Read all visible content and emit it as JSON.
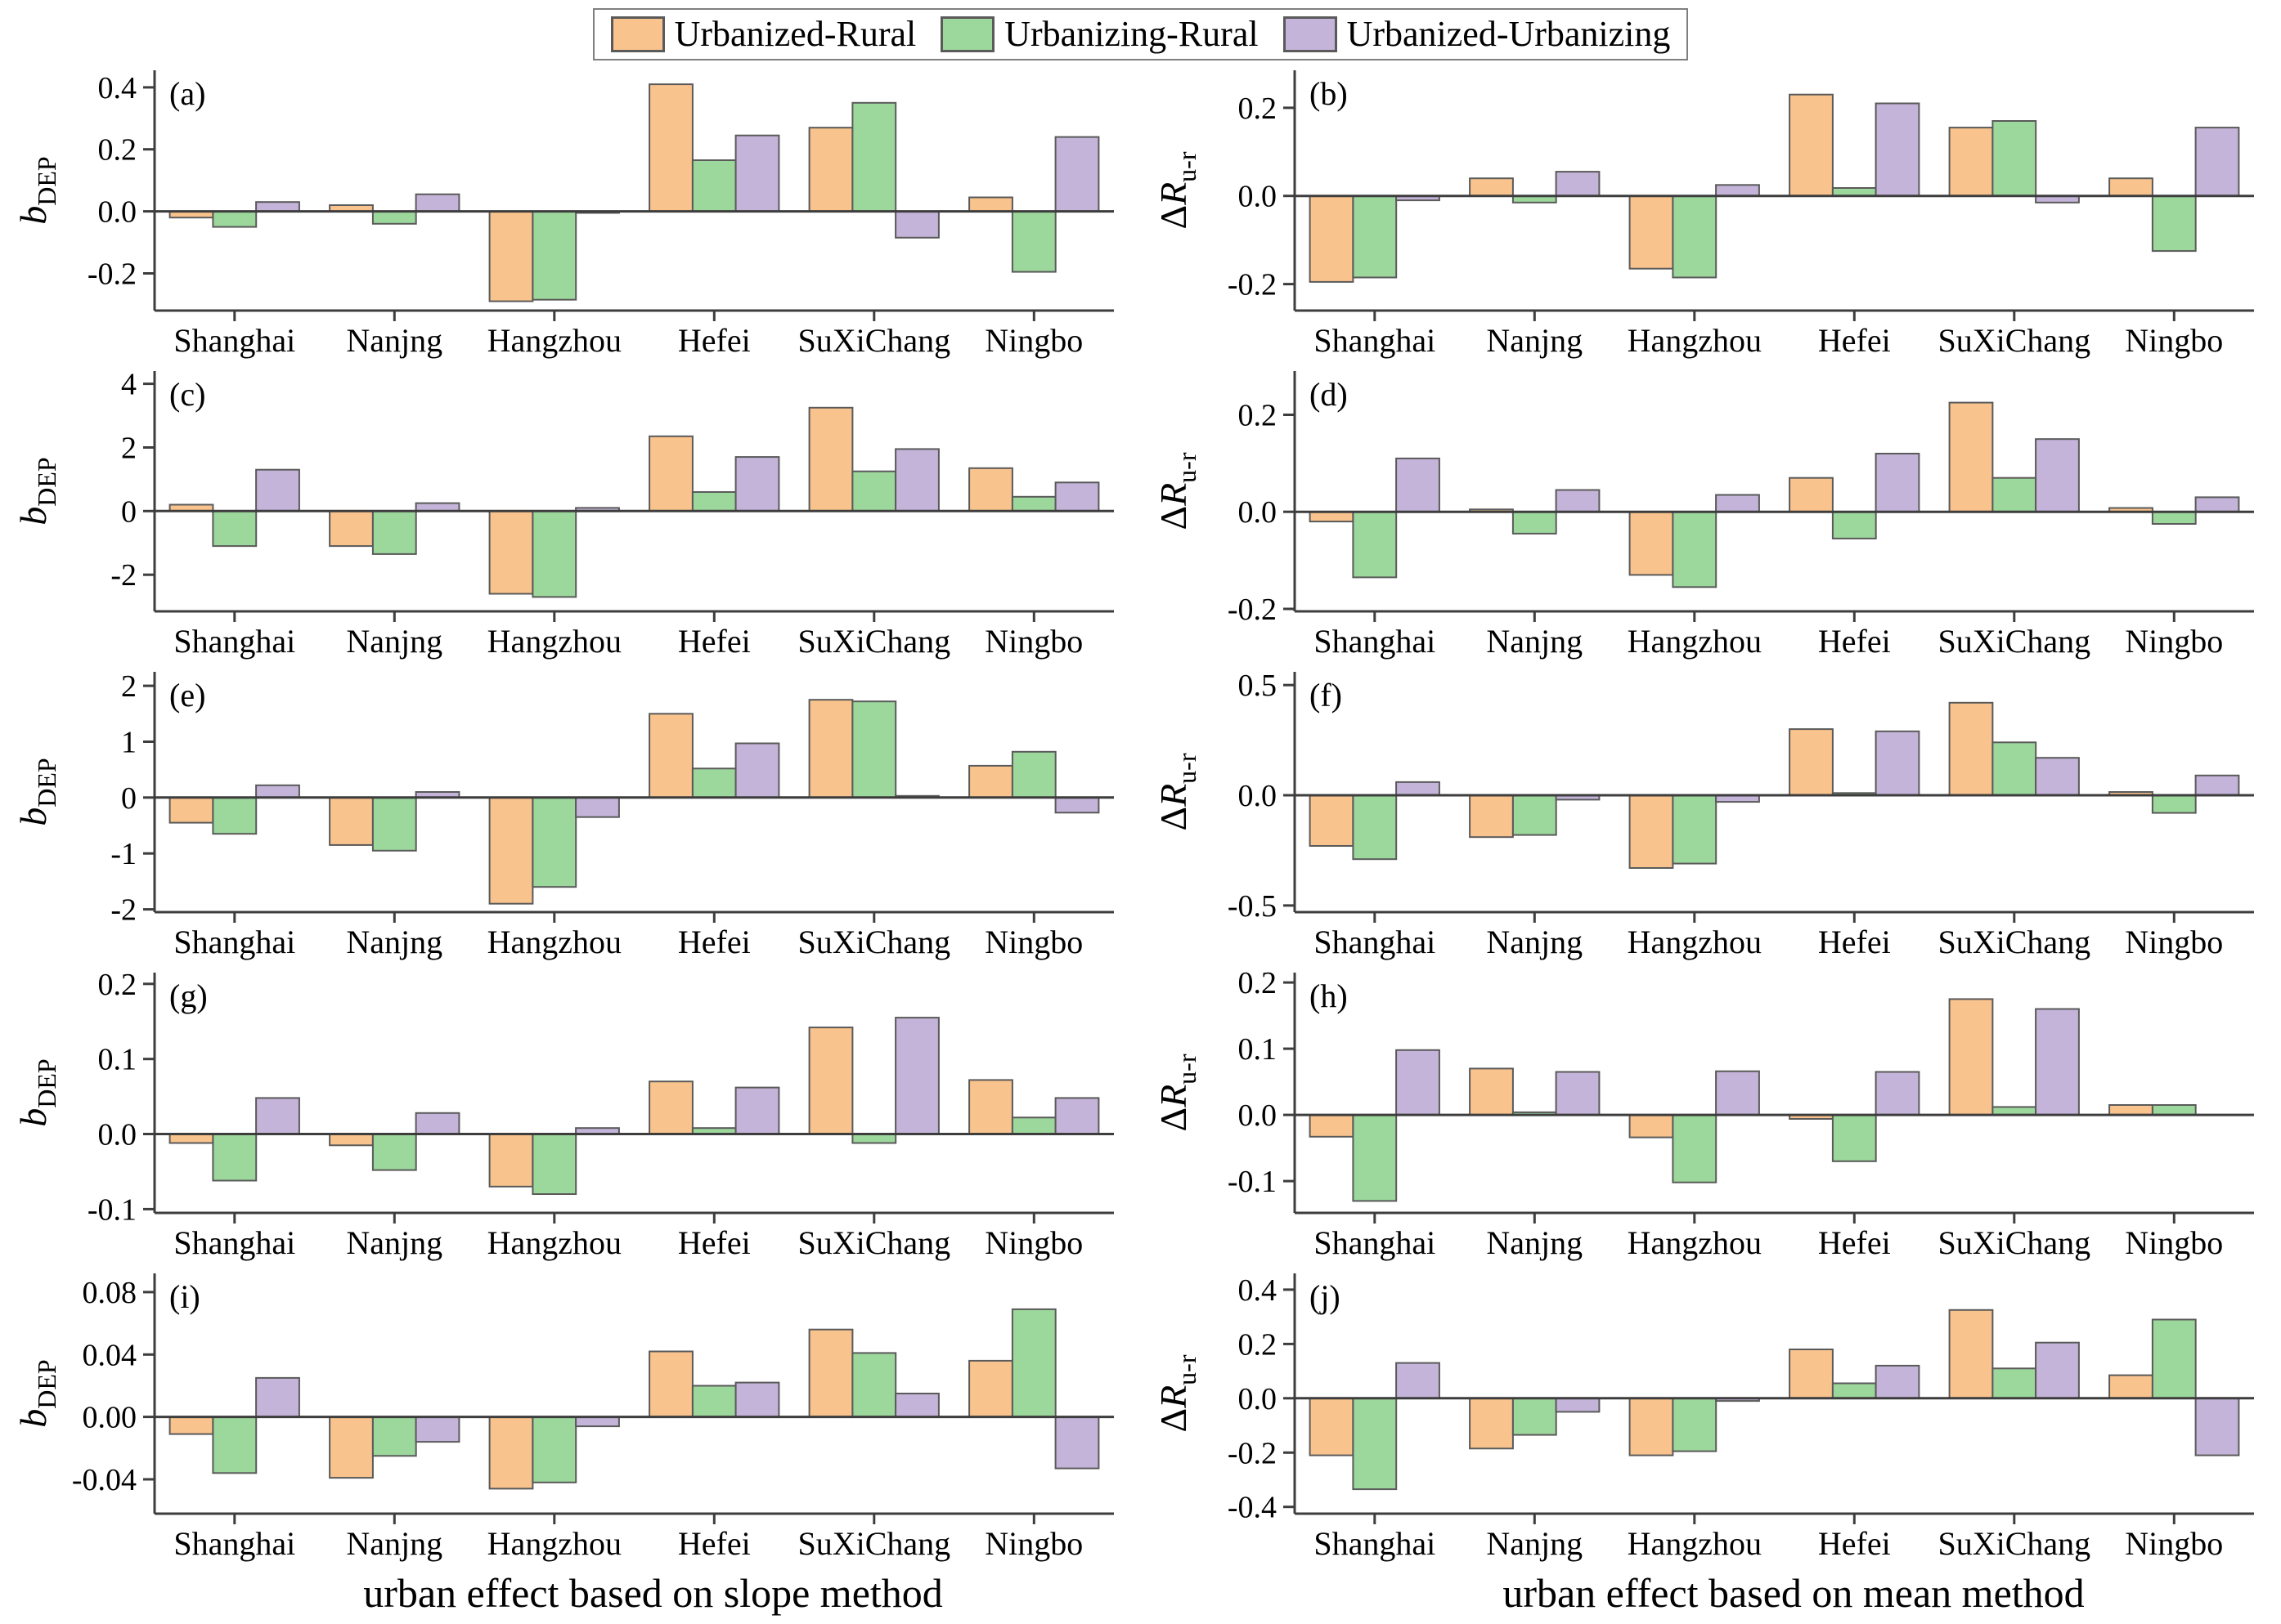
{
  "legend": {
    "items": [
      {
        "label": "Urbanized-Rural",
        "color": "#F9C38D"
      },
      {
        "label": "Urbanizing-Rural",
        "color": "#9CD79B"
      },
      {
        "label": "Urbanized-Urbanizing",
        "color": "#C4B4D9"
      }
    ]
  },
  "colors": {
    "bar_stroke": "#5a5a5a",
    "axis": "#3d3d3d"
  },
  "xtitles": {
    "slope": "urban effect based on slope method",
    "mean": "urban effect based on mean method"
  },
  "categories": [
    "Shanghai",
    "Nanjng",
    "Hangzhou",
    "Hefei",
    "SuXiChang",
    "Ningbo"
  ],
  "chart_data": [
    {
      "type": "bar",
      "key": "a",
      "id": "(a)",
      "ylabel": {
        "prefix": "",
        "main": "b",
        "sub": "DEP"
      },
      "ylim": [
        -0.32,
        0.455
      ],
      "yticks": [
        {
          "t": "0.4",
          "v": 0.4
        },
        {
          "t": "0.2",
          "v": 0.2
        },
        {
          "t": "0.0",
          "v": 0.0
        },
        {
          "t": "-0.2",
          "v": -0.2
        }
      ],
      "series": [
        {
          "name": "Urbanized-Rural",
          "values": [
            -0.02,
            0.02,
            -0.29,
            0.41,
            0.27,
            0.045
          ]
        },
        {
          "name": "Urbanizing-Rural",
          "values": [
            -0.05,
            -0.04,
            -0.285,
            0.165,
            0.35,
            -0.195
          ]
        },
        {
          "name": "Urbanized-Urbanizing",
          "values": [
            0.03,
            0.055,
            -0.005,
            0.245,
            -0.085,
            0.24
          ]
        }
      ]
    },
    {
      "type": "bar",
      "key": "b",
      "id": "(b)",
      "ylabel": {
        "prefix": "Δ",
        "main": "R",
        "sub": "u-r"
      },
      "ylim": [
        -0.26,
        0.285
      ],
      "yticks": [
        {
          "t": "0.2",
          "v": 0.2
        },
        {
          "t": "0.0",
          "v": 0.0
        },
        {
          "t": "-0.2",
          "v": -0.2
        }
      ],
      "series": [
        {
          "name": "Urbanized-Rural",
          "values": [
            -0.195,
            0.04,
            -0.165,
            0.23,
            0.155,
            0.04
          ]
        },
        {
          "name": "Urbanizing-Rural",
          "values": [
            -0.185,
            -0.015,
            -0.185,
            0.018,
            0.17,
            -0.125
          ]
        },
        {
          "name": "Urbanized-Urbanizing",
          "values": [
            -0.01,
            0.055,
            0.025,
            0.21,
            -0.015,
            0.155
          ]
        }
      ]
    },
    {
      "type": "bar",
      "key": "c",
      "id": "(c)",
      "ylabel": {
        "prefix": "",
        "main": "b",
        "sub": "DEP"
      },
      "ylim": [
        -3.15,
        4.4
      ],
      "yticks": [
        {
          "t": "4",
          "v": 4
        },
        {
          "t": "2",
          "v": 2
        },
        {
          "t": "0",
          "v": 0
        },
        {
          "t": "-2",
          "v": -2
        }
      ],
      "series": [
        {
          "name": "Urbanized-Rural",
          "values": [
            0.2,
            -1.1,
            -2.6,
            2.35,
            3.25,
            1.35
          ]
        },
        {
          "name": "Urbanizing-Rural",
          "values": [
            -1.1,
            -1.35,
            -2.7,
            0.6,
            1.25,
            0.45
          ]
        },
        {
          "name": "Urbanized-Urbanizing",
          "values": [
            1.3,
            0.25,
            0.1,
            1.7,
            1.95,
            0.9
          ]
        }
      ]
    },
    {
      "type": "bar",
      "key": "d",
      "id": "(d)",
      "ylabel": {
        "prefix": "Δ",
        "main": "R",
        "sub": "u-r"
      },
      "ylim": [
        -0.205,
        0.29
      ],
      "yticks": [
        {
          "t": "0.2",
          "v": 0.2
        },
        {
          "t": "0.0",
          "v": 0.0
        },
        {
          "t": "-0.2",
          "v": -0.2
        }
      ],
      "series": [
        {
          "name": "Urbanized-Rural",
          "values": [
            -0.02,
            0.005,
            -0.13,
            0.07,
            0.225,
            0.008
          ]
        },
        {
          "name": "Urbanizing-Rural",
          "values": [
            -0.135,
            -0.045,
            -0.155,
            -0.055,
            0.07,
            -0.025
          ]
        },
        {
          "name": "Urbanized-Urbanizing",
          "values": [
            0.11,
            0.045,
            0.035,
            0.12,
            0.15,
            0.03
          ]
        }
      ]
    },
    {
      "type": "bar",
      "key": "e",
      "id": "(e)",
      "ylabel": {
        "prefix": "",
        "main": "b",
        "sub": "DEP"
      },
      "ylim": [
        -2.05,
        2.25
      ],
      "yticks": [
        {
          "t": "2",
          "v": 2
        },
        {
          "t": "1",
          "v": 1
        },
        {
          "t": "0",
          "v": 0
        },
        {
          "t": "-1",
          "v": -1
        },
        {
          "t": "-2",
          "v": -2
        }
      ],
      "series": [
        {
          "name": "Urbanized-Rural",
          "values": [
            -0.45,
            -0.85,
            -1.9,
            1.5,
            1.75,
            0.57
          ]
        },
        {
          "name": "Urbanizing-Rural",
          "values": [
            -0.65,
            -0.95,
            -1.6,
            0.52,
            1.72,
            0.82
          ]
        },
        {
          "name": "Urbanized-Urbanizing",
          "values": [
            0.22,
            0.1,
            -0.35,
            0.97,
            0.03,
            -0.27
          ]
        }
      ]
    },
    {
      "type": "bar",
      "key": "f",
      "id": "(f)",
      "ylabel": {
        "prefix": "Δ",
        "main": "R",
        "sub": "u-r"
      },
      "ylim": [
        -0.53,
        0.56
      ],
      "yticks": [
        {
          "t": "0.5",
          "v": 0.5
        },
        {
          "t": "0.0",
          "v": 0.0
        },
        {
          "t": "-0.5",
          "v": -0.5
        }
      ],
      "series": [
        {
          "name": "Urbanized-Rural",
          "values": [
            -0.23,
            -0.19,
            -0.33,
            0.3,
            0.42,
            0.015
          ]
        },
        {
          "name": "Urbanizing-Rural",
          "values": [
            -0.29,
            -0.18,
            -0.31,
            0.01,
            0.24,
            -0.08
          ]
        },
        {
          "name": "Urbanized-Urbanizing",
          "values": [
            0.06,
            -0.02,
            -0.03,
            0.29,
            0.17,
            0.09
          ]
        }
      ]
    },
    {
      "type": "bar",
      "key": "g",
      "id": "(g)",
      "ylabel": {
        "prefix": "",
        "main": "b",
        "sub": "DEP"
      },
      "ylim": [
        -0.105,
        0.215
      ],
      "yticks": [
        {
          "t": "0.2",
          "v": 0.2
        },
        {
          "t": "0.1",
          "v": 0.1
        },
        {
          "t": "0.0",
          "v": 0.0
        },
        {
          "t": "-0.1",
          "v": -0.1
        }
      ],
      "series": [
        {
          "name": "Urbanized-Rural",
          "values": [
            -0.012,
            -0.015,
            -0.07,
            0.07,
            0.142,
            0.072
          ]
        },
        {
          "name": "Urbanizing-Rural",
          "values": [
            -0.062,
            -0.048,
            -0.08,
            0.008,
            -0.012,
            0.022
          ]
        },
        {
          "name": "Urbanized-Urbanizing",
          "values": [
            0.048,
            0.028,
            0.008,
            0.062,
            0.155,
            0.048
          ]
        }
      ]
    },
    {
      "type": "bar",
      "key": "h",
      "id": "(h)",
      "ylabel": {
        "prefix": "Δ",
        "main": "R",
        "sub": "u-r"
      },
      "ylim": [
        -0.148,
        0.215
      ],
      "yticks": [
        {
          "t": "0.2",
          "v": 0.2
        },
        {
          "t": "0.1",
          "v": 0.1
        },
        {
          "t": "0.0",
          "v": 0.0
        },
        {
          "t": "-0.1",
          "v": -0.1
        }
      ],
      "series": [
        {
          "name": "Urbanized-Rural",
          "values": [
            -0.033,
            0.07,
            -0.034,
            -0.006,
            0.175,
            0.015
          ]
        },
        {
          "name": "Urbanizing-Rural",
          "values": [
            -0.13,
            0.004,
            -0.102,
            -0.07,
            0.012,
            0.015
          ]
        },
        {
          "name": "Urbanized-Urbanizing",
          "values": [
            0.098,
            0.065,
            0.066,
            0.065,
            0.16,
            0
          ]
        }
      ]
    },
    {
      "type": "bar",
      "key": "i",
      "id": "(i)",
      "ylabel": {
        "prefix": "",
        "main": "b",
        "sub": "DEP"
      },
      "ylim": [
        -0.062,
        0.092
      ],
      "yticks": [
        {
          "t": "0.08",
          "v": 0.08
        },
        {
          "t": "0.04",
          "v": 0.04
        },
        {
          "t": "0.00",
          "v": 0.0
        },
        {
          "t": "-0.04",
          "v": -0.04
        }
      ],
      "series": [
        {
          "name": "Urbanized-Rural",
          "values": [
            -0.011,
            -0.039,
            -0.046,
            0.042,
            0.056,
            0.036
          ]
        },
        {
          "name": "Urbanizing-Rural",
          "values": [
            -0.036,
            -0.025,
            -0.042,
            0.02,
            0.041,
            0.069
          ]
        },
        {
          "name": "Urbanized-Urbanizing",
          "values": [
            0.025,
            -0.016,
            -0.006,
            0.022,
            0.015,
            -0.033
          ]
        }
      ]
    },
    {
      "type": "bar",
      "key": "j",
      "id": "(j)",
      "ylabel": {
        "prefix": "Δ",
        "main": "R",
        "sub": "u-r"
      },
      "ylim": [
        -0.425,
        0.46
      ],
      "yticks": [
        {
          "t": "0.4",
          "v": 0.4
        },
        {
          "t": "0.2",
          "v": 0.2
        },
        {
          "t": "0.0",
          "v": 0.0
        },
        {
          "t": "-0.2",
          "v": -0.2
        },
        {
          "t": "-0.4",
          "v": -0.4
        }
      ],
      "series": [
        {
          "name": "Urbanized-Rural",
          "values": [
            -0.21,
            -0.185,
            -0.21,
            0.18,
            0.325,
            0.085
          ]
        },
        {
          "name": "Urbanizing-Rural",
          "values": [
            -0.335,
            -0.135,
            -0.195,
            0.055,
            0.11,
            0.29
          ]
        },
        {
          "name": "Urbanized-Urbanizing",
          "values": [
            0.13,
            -0.05,
            -0.01,
            0.12,
            0.205,
            -0.21
          ]
        }
      ]
    }
  ]
}
